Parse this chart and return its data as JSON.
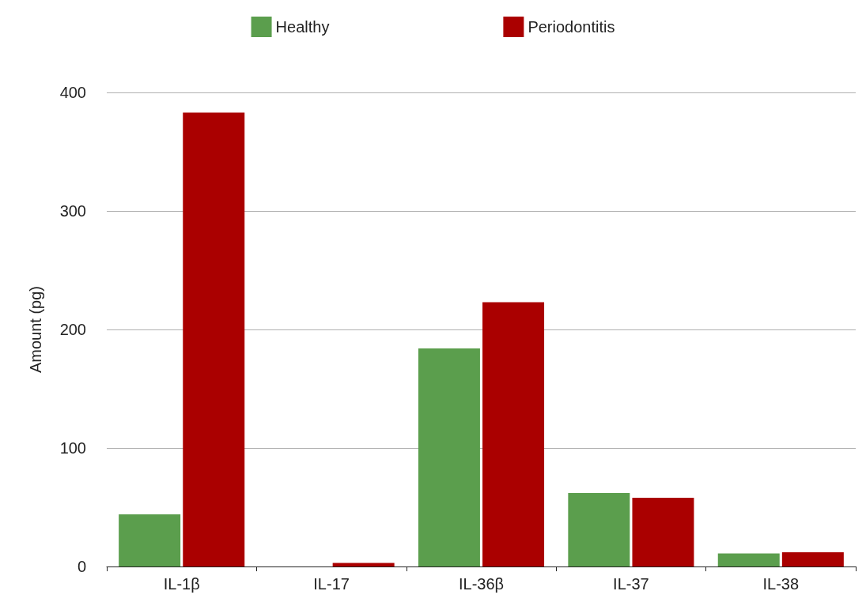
{
  "chart_data": {
    "type": "bar",
    "ylabel": "Amount (pg)",
    "categories": [
      "IL-1β",
      "IL-17",
      "IL-36β",
      "IL-37",
      "IL-38"
    ],
    "series": [
      {
        "name": "Healthy",
        "color": "#5b9e4d",
        "values": [
          44,
          0,
          184,
          62,
          11
        ]
      },
      {
        "name": "Periodontitis",
        "color": "#aa0000",
        "values": [
          383,
          3,
          223,
          58,
          12
        ]
      }
    ],
    "ylim": [
      0,
      400
    ],
    "yticks": [
      0,
      100,
      200,
      300,
      400
    ],
    "grid": "y",
    "legend": "top"
  }
}
